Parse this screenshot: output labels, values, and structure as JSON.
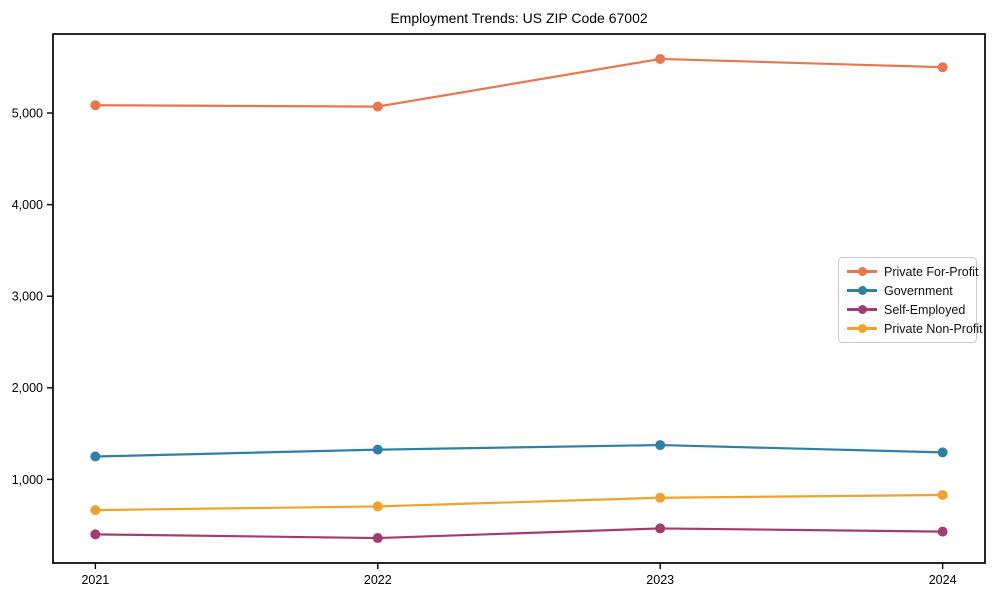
{
  "figure": {
    "background": "#ffffff",
    "axis_color": "#000000",
    "legend_border_color": "#cccccc"
  },
  "chart_data": {
    "type": "line",
    "title": "Employment Trends: US ZIP Code 67002",
    "xlabel": "",
    "ylabel": "",
    "x": [
      2021,
      2022,
      2023,
      2024
    ],
    "x_tick_labels": [
      "2021",
      "2022",
      "2023",
      "2024"
    ],
    "y_ticks": [
      1000,
      2000,
      3000,
      4000,
      5000
    ],
    "y_tick_labels": [
      "1,000",
      "2,000",
      "3,000",
      "4,000",
      "5,000"
    ],
    "xlim": [
      2020.85,
      2024.15
    ],
    "ylim": [
      87.5,
      5862.5
    ],
    "grid": false,
    "legend_position": "center-right",
    "series": [
      {
        "name": "Private For-Profit",
        "color": "#E8774E",
        "values": [
          5085,
          5070,
          5590,
          5500
        ]
      },
      {
        "name": "Government",
        "color": "#2E81A5",
        "values": [
          1250,
          1325,
          1375,
          1295
        ]
      },
      {
        "name": "Self-Employed",
        "color": "#A23B72",
        "values": [
          400,
          360,
          465,
          430
        ]
      },
      {
        "name": "Private Non-Profit",
        "color": "#F0A22C",
        "values": [
          665,
          705,
          800,
          830
        ]
      }
    ]
  }
}
